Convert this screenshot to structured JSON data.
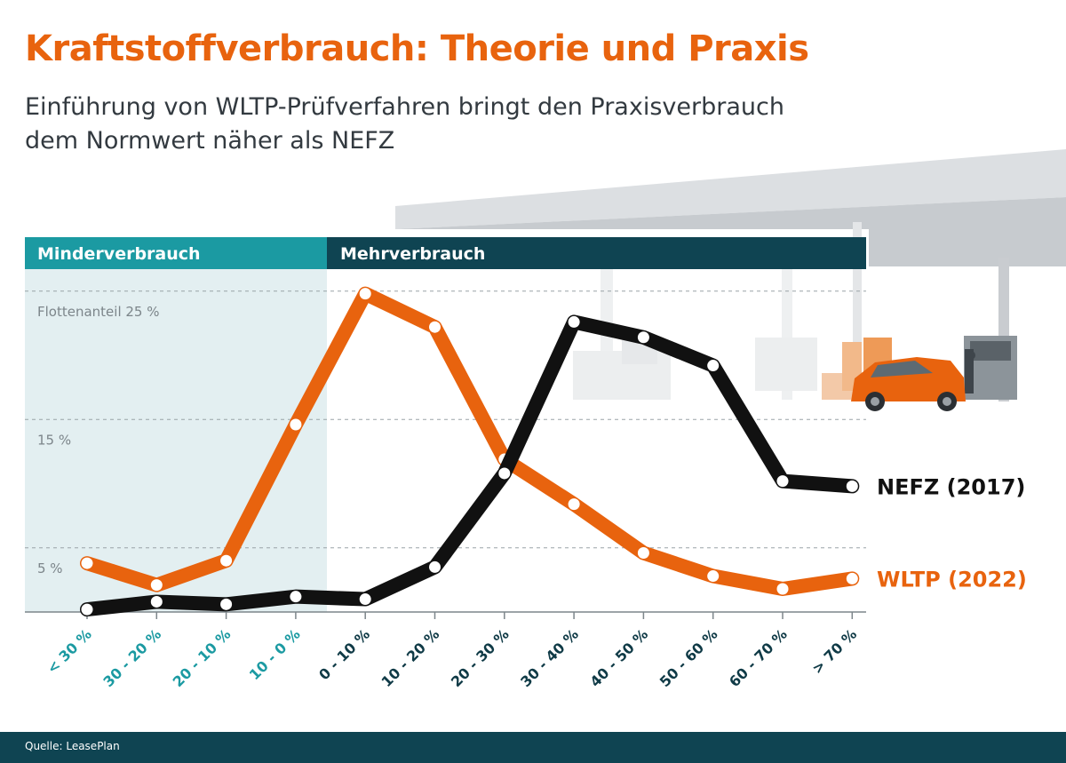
{
  "title": "Kraftstoffverbrauch: Theorie und Praxis",
  "subtitle_line1": "Einführung von WLTP-Prüfverfahren bringt den Praxisverbrauch",
  "subtitle_line2": "dem Normwert näher als NEFZ",
  "source": "Quelle: LeasePlan",
  "colors": {
    "orange": "#e8630e",
    "black": "#111111",
    "teal_band": "#1b9aa2",
    "dark_band": "#0f4452",
    "teal_text": "#1b9aa2",
    "dark_text": "#0f3a46",
    "light_area": "#e3eff1"
  },
  "chart_data": {
    "type": "line",
    "bands": [
      {
        "label": "Minderverbrauch",
        "categories": [
          "< 30 %",
          "30 - 20 %",
          "20 - 10 %",
          "10 - 0 %"
        ]
      },
      {
        "label": "Mehrverbrauch",
        "categories": [
          "0 - 10 %",
          "10 - 20 %",
          "20 - 30 %",
          "30 - 40 %",
          "40 - 50 %",
          "50 - 60 %",
          "60 - 70 %",
          "> 70 %"
        ]
      }
    ],
    "categories": [
      "< 30 %",
      "30 - 20 %",
      "20 - 10 %",
      "10 - 0 %",
      "0 - 10 %",
      "10 - 20 %",
      "20 - 30 %",
      "30 - 40 %",
      "40 - 50 %",
      "50 - 60 %",
      "60 - 70 %",
      "> 70 %"
    ],
    "y_tick_labels": [
      {
        "value": 25,
        "label": "Flottenanteil 25 %"
      },
      {
        "value": 15,
        "label": "15 %"
      },
      {
        "value": 5,
        "label": "5 %"
      }
    ],
    "ylim": [
      0,
      26
    ],
    "series": [
      {
        "name": "NEFZ (2017)",
        "color": "#111111",
        "values": [
          0.2,
          0.8,
          0.6,
          1.2,
          1.0,
          3.5,
          10.8,
          22.6,
          21.4,
          19.2,
          10.2,
          9.8
        ]
      },
      {
        "name": "WLTP (2022)",
        "color": "#e8630e",
        "values": [
          3.8,
          2.1,
          4.0,
          14.6,
          24.8,
          22.2,
          11.9,
          8.4,
          4.6,
          2.8,
          1.8,
          2.6
        ]
      }
    ]
  }
}
